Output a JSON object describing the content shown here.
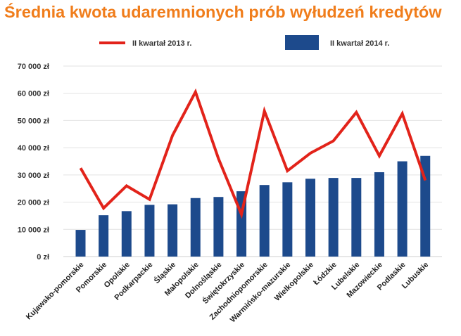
{
  "chart_data": {
    "type": "bar",
    "title": "Średnia kwota udaremnionych prób wyłudzeń kredytów",
    "xlabel": "",
    "ylabel": "",
    "ylim": [
      0,
      70000
    ],
    "yticks": [
      0,
      10000,
      20000,
      30000,
      40000,
      50000,
      60000,
      70000
    ],
    "ytick_labels": [
      "0 zł",
      "10 000 zł",
      "20 000 zł",
      "30 000 zł",
      "40 000 zł",
      "50 000 zł",
      "60 000 zł",
      "70 000 zł"
    ],
    "grid": true,
    "legend_position": "top",
    "categories": [
      "Kujawsko-pomorskie",
      "Pomorskie",
      "Opolskie",
      "Podkarpackie",
      "Śląskie",
      "Małopolskie",
      "Dolnośląskie",
      "Świętokrzyskie",
      "Zachodniopomorskie",
      "Warmińsko-mazurskie",
      "Wielkopolskie",
      "Łódzkie",
      "Lubelskie",
      "Mazowieckie",
      "Podlaskie",
      "Lubuskie"
    ],
    "series": [
      {
        "name": "II kwartał 2013 r.",
        "type": "line",
        "color": "#e2231a",
        "values": [
          32500,
          17800,
          26000,
          21000,
          44500,
          60500,
          36000,
          15500,
          53500,
          31500,
          38000,
          42500,
          53000,
          37000,
          52500,
          28000
        ]
      },
      {
        "name": "II kwartał 2014 r.",
        "type": "bar",
        "color": "#1d4a8c",
        "values": [
          9800,
          15200,
          16700,
          19000,
          19200,
          21500,
          21900,
          24000,
          26300,
          27300,
          28600,
          28900,
          28900,
          31000,
          35000,
          37000
        ]
      }
    ]
  }
}
